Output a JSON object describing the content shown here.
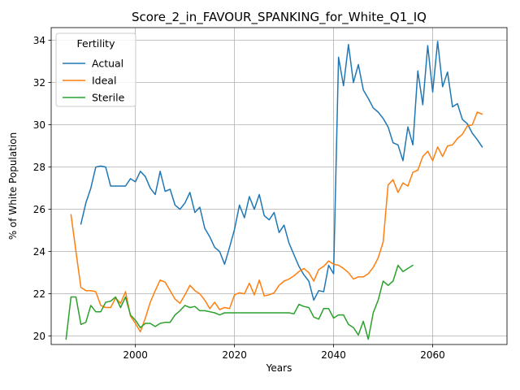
{
  "chart_data": {
    "type": "line",
    "title": "Score_2_in_FAVOUR_SPANKING_for_White_Q1_IQ",
    "xlabel": "Years",
    "ylabel": "% of White Population",
    "xlim": [
      1983,
      2075
    ],
    "ylim": [
      19.6,
      34.6
    ],
    "xticks": [
      2000,
      2020,
      2040,
      2060
    ],
    "yticks": [
      20,
      22,
      24,
      26,
      28,
      30,
      32,
      34
    ],
    "grid": true,
    "legend": {
      "title": "Fertility",
      "position": "top-left"
    },
    "series": [
      {
        "name": "Actual",
        "color": "#1f77b4",
        "x": [
          1989,
          1990,
          1991,
          1992,
          1993,
          1994,
          1995,
          1996,
          1997,
          1998,
          1999,
          2000,
          2001,
          2002,
          2003,
          2004,
          2005,
          2006,
          2007,
          2008,
          2009,
          2010,
          2011,
          2012,
          2013,
          2014,
          2015,
          2016,
          2017,
          2018,
          2019,
          2020,
          2021,
          2022,
          2023,
          2024,
          2025,
          2026,
          2027,
          2028,
          2029,
          2030,
          2031,
          2032,
          2033,
          2034,
          2035,
          2036,
          2037,
          2038,
          2039,
          2040,
          2041,
          2042,
          2043,
          2044,
          2045,
          2046,
          2047,
          2048,
          2049,
          2050,
          2051,
          2052,
          2053,
          2054,
          2055,
          2056,
          2057,
          2058,
          2059,
          2060,
          2061,
          2062,
          2063,
          2064,
          2065,
          2066,
          2067,
          2068,
          2069,
          2070
        ],
        "values": [
          25.3,
          26.3,
          27.0,
          28.0,
          28.05,
          28.0,
          27.1,
          27.1,
          27.1,
          27.1,
          27.45,
          27.3,
          27.8,
          27.55,
          27.0,
          26.7,
          27.8,
          26.85,
          26.95,
          26.2,
          26.0,
          26.3,
          26.8,
          25.85,
          26.1,
          25.1,
          24.7,
          24.2,
          24.0,
          23.4,
          24.2,
          25.05,
          26.2,
          25.6,
          26.6,
          26.0,
          26.7,
          25.7,
          25.5,
          25.85,
          24.9,
          25.25,
          24.4,
          23.85,
          23.3,
          22.9,
          22.6,
          21.7,
          22.15,
          22.1,
          23.35,
          22.95,
          33.2,
          31.85,
          33.8,
          32.0,
          32.85,
          31.65,
          31.25,
          30.8,
          30.6,
          30.3,
          29.9,
          29.15,
          29.05,
          28.3,
          29.9,
          29.05,
          32.55,
          30.95,
          33.75,
          31.55,
          33.95,
          31.8,
          32.5,
          30.85,
          31.0,
          30.25,
          30.05,
          29.6,
          29.3,
          28.95
        ]
      },
      {
        "name": "Ideal",
        "color": "#ff7f0e",
        "x": [
          1987,
          1988,
          1989,
          1990,
          1991,
          1992,
          1993,
          1994,
          1995,
          1996,
          1997,
          1998,
          1999,
          2000,
          2001,
          2002,
          2003,
          2004,
          2005,
          2006,
          2007,
          2008,
          2009,
          2010,
          2011,
          2012,
          2013,
          2014,
          2015,
          2016,
          2017,
          2018,
          2019,
          2020,
          2021,
          2022,
          2023,
          2024,
          2025,
          2026,
          2027,
          2028,
          2029,
          2030,
          2031,
          2032,
          2033,
          2034,
          2035,
          2036,
          2037,
          2038,
          2039,
          2040,
          2041,
          2042,
          2043,
          2044,
          2045,
          2046,
          2047,
          2048,
          2049,
          2050,
          2051,
          2052,
          2053,
          2054,
          2055,
          2056,
          2057,
          2058,
          2059,
          2060,
          2061,
          2062,
          2063,
          2064,
          2065,
          2066,
          2067,
          2068,
          2069,
          2070
        ],
        "values": [
          25.75,
          24.0,
          22.3,
          22.15,
          22.15,
          22.1,
          21.45,
          21.35,
          21.35,
          21.8,
          21.55,
          22.1,
          20.95,
          20.6,
          20.2,
          20.85,
          21.6,
          22.15,
          22.65,
          22.55,
          22.15,
          21.75,
          21.55,
          21.95,
          22.4,
          22.15,
          22.0,
          21.7,
          21.3,
          21.6,
          21.25,
          21.35,
          21.3,
          21.95,
          22.05,
          22.0,
          22.5,
          21.95,
          22.65,
          21.9,
          21.95,
          22.05,
          22.4,
          22.6,
          22.7,
          22.85,
          23.05,
          23.2,
          23.0,
          22.6,
          23.15,
          23.3,
          23.55,
          23.4,
          23.35,
          23.2,
          23.0,
          22.7,
          22.8,
          22.8,
          22.95,
          23.25,
          23.7,
          24.45,
          27.15,
          27.4,
          26.8,
          27.25,
          27.1,
          27.75,
          27.85,
          28.5,
          28.75,
          28.3,
          28.95,
          28.5,
          29.0,
          29.05,
          29.35,
          29.55,
          29.95,
          30.0,
          30.6,
          30.5
        ]
      },
      {
        "name": "Sterile",
        "color": "#2ca02c",
        "x": [
          1986,
          1987,
          1988,
          1989,
          1990,
          1991,
          1992,
          1993,
          1994,
          1995,
          1996,
          1997,
          1998,
          1999,
          2000,
          2001,
          2002,
          2003,
          2004,
          2005,
          2006,
          2007,
          2008,
          2009,
          2010,
          2011,
          2012,
          2013,
          2014,
          2015,
          2016,
          2017,
          2018,
          2019,
          2020,
          2021,
          2022,
          2023,
          2024,
          2025,
          2026,
          2027,
          2028,
          2029,
          2030,
          2031,
          2032,
          2033,
          2034,
          2035,
          2036,
          2037,
          2038,
          2039,
          2040,
          2041,
          2042,
          2043,
          2044,
          2045,
          2046,
          2047,
          2048,
          2049,
          2050,
          2051,
          2052,
          2053,
          2054,
          2055,
          2056
        ],
        "values": [
          19.85,
          21.85,
          21.85,
          20.55,
          20.65,
          21.45,
          21.15,
          21.15,
          21.6,
          21.65,
          21.85,
          21.35,
          21.85,
          21.0,
          20.75,
          20.4,
          20.6,
          20.6,
          20.45,
          20.6,
          20.65,
          20.65,
          21.0,
          21.2,
          21.45,
          21.35,
          21.4,
          21.2,
          21.2,
          21.15,
          21.1,
          21.0,
          21.1,
          21.1,
          21.1,
          21.1,
          21.1,
          21.1,
          21.1,
          21.1,
          21.1,
          21.1,
          21.1,
          21.1,
          21.1,
          21.1,
          21.05,
          21.5,
          21.4,
          21.35,
          20.9,
          20.8,
          21.3,
          21.3,
          20.85,
          21.0,
          21.0,
          20.55,
          20.4,
          20.05,
          20.7,
          19.85,
          21.1,
          21.7,
          22.6,
          22.4,
          22.6,
          23.35,
          23.05,
          23.2,
          23.35
        ]
      }
    ]
  }
}
